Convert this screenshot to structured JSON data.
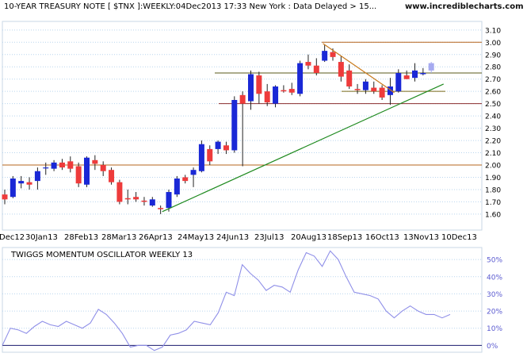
{
  "chart_data": [
    {
      "type": "candlestick",
      "title": "10-YEAR TREASURY NOTE [ $TNX ]:WEEKLY:04Dec2013 17:33 New York : Data Delayed > 15...",
      "watermark": "www.incrediblecharts.com",
      "y_ticks": [
        "3.10",
        "3.00",
        "2.90",
        "2.80",
        "2.70",
        "2.60",
        "2.50",
        "2.40",
        "2.30",
        "2.20",
        "2.10",
        "2.00",
        "1.90",
        "1.80",
        "1.70",
        "1.60"
      ],
      "x_labels": [
        "Dec12",
        "30Jan13",
        "28Feb13",
        "28Mar13",
        "26Apr13",
        "24May13",
        "24Jun13",
        "23Jul13",
        "20Aug13",
        "18Sep13",
        "16Oct13",
        "13Nov13",
        "10Dec13"
      ],
      "ylim": [
        1.47,
        3.17
      ],
      "colors": {
        "up": "#1a28d6",
        "down": "#ee3b3b",
        "current": "#a6aaf0",
        "support_line": "#1f8a1f",
        "resistance_line": "#c97a1c",
        "hline": "#8b2d2d",
        "grid": "#b9d5ee"
      },
      "candles": [
        {
          "o": 1.76,
          "h": 1.8,
          "l": 1.68,
          "c": 1.72
        },
        {
          "o": 1.74,
          "h": 1.91,
          "l": 1.73,
          "c": 1.89
        },
        {
          "o": 1.85,
          "h": 1.91,
          "l": 1.81,
          "c": 1.87
        },
        {
          "o": 1.86,
          "h": 1.9,
          "l": 1.8,
          "c": 1.84
        },
        {
          "o": 1.87,
          "h": 1.98,
          "l": 1.8,
          "c": 1.95
        },
        {
          "o": 1.98,
          "h": 2.02,
          "l": 1.92,
          "c": 1.98
        },
        {
          "o": 1.97,
          "h": 2.04,
          "l": 1.95,
          "c": 2.02
        },
        {
          "o": 2.02,
          "h": 2.05,
          "l": 1.96,
          "c": 1.98
        },
        {
          "o": 2.03,
          "h": 2.07,
          "l": 1.94,
          "c": 1.97
        },
        {
          "o": 1.99,
          "h": 2.02,
          "l": 1.82,
          "c": 1.85
        },
        {
          "o": 1.84,
          "h": 2.07,
          "l": 1.82,
          "c": 2.06
        },
        {
          "o": 2.04,
          "h": 2.08,
          "l": 1.96,
          "c": 2.01
        },
        {
          "o": 2.0,
          "h": 2.03,
          "l": 1.91,
          "c": 1.95
        },
        {
          "o": 1.96,
          "h": 1.98,
          "l": 1.84,
          "c": 1.86
        },
        {
          "o": 1.86,
          "h": 1.88,
          "l": 1.68,
          "c": 1.7
        },
        {
          "o": 1.73,
          "h": 1.8,
          "l": 1.68,
          "c": 1.72
        },
        {
          "o": 1.74,
          "h": 1.78,
          "l": 1.7,
          "c": 1.72
        },
        {
          "o": 1.71,
          "h": 1.74,
          "l": 1.67,
          "c": 1.7
        },
        {
          "o": 1.67,
          "h": 1.74,
          "l": 1.66,
          "c": 1.72
        },
        {
          "o": 1.65,
          "h": 1.67,
          "l": 1.6,
          "c": 1.64
        },
        {
          "o": 1.65,
          "h": 1.8,
          "l": 1.62,
          "c": 1.78
        },
        {
          "o": 1.76,
          "h": 1.91,
          "l": 1.74,
          "c": 1.89
        },
        {
          "o": 1.9,
          "h": 1.92,
          "l": 1.85,
          "c": 1.87
        },
        {
          "o": 1.92,
          "h": 1.98,
          "l": 1.82,
          "c": 1.96
        },
        {
          "o": 1.95,
          "h": 2.2,
          "l": 1.94,
          "c": 2.17
        },
        {
          "o": 2.13,
          "h": 2.16,
          "l": 2.0,
          "c": 2.03
        },
        {
          "o": 2.13,
          "h": 2.2,
          "l": 2.09,
          "c": 2.19
        },
        {
          "o": 2.16,
          "h": 2.19,
          "l": 2.09,
          "c": 2.12
        },
        {
          "o": 2.12,
          "h": 2.56,
          "l": 2.1,
          "c": 2.53
        },
        {
          "o": 2.57,
          "h": 2.6,
          "l": 1.99,
          "c": 2.5
        },
        {
          "o": 2.52,
          "h": 2.77,
          "l": 2.45,
          "c": 2.74
        },
        {
          "o": 2.73,
          "h": 2.76,
          "l": 2.5,
          "c": 2.58
        },
        {
          "o": 2.6,
          "h": 2.66,
          "l": 2.48,
          "c": 2.51
        },
        {
          "o": 2.5,
          "h": 2.65,
          "l": 2.47,
          "c": 2.64
        },
        {
          "o": 2.61,
          "h": 2.65,
          "l": 2.59,
          "c": 2.6
        },
        {
          "o": 2.62,
          "h": 2.67,
          "l": 2.57,
          "c": 2.59
        },
        {
          "o": 2.58,
          "h": 2.85,
          "l": 2.56,
          "c": 2.83
        },
        {
          "o": 2.84,
          "h": 2.9,
          "l": 2.78,
          "c": 2.81
        },
        {
          "o": 2.81,
          "h": 2.87,
          "l": 2.73,
          "c": 2.75
        },
        {
          "o": 2.85,
          "h": 2.98,
          "l": 2.84,
          "c": 2.93
        },
        {
          "o": 2.92,
          "h": 2.95,
          "l": 2.85,
          "c": 2.88
        },
        {
          "o": 2.84,
          "h": 2.89,
          "l": 2.68,
          "c": 2.72
        },
        {
          "o": 2.77,
          "h": 2.82,
          "l": 2.62,
          "c": 2.64
        },
        {
          "o": 2.62,
          "h": 2.66,
          "l": 2.58,
          "c": 2.61
        },
        {
          "o": 2.61,
          "h": 2.7,
          "l": 2.58,
          "c": 2.68
        },
        {
          "o": 2.63,
          "h": 2.68,
          "l": 2.58,
          "c": 2.6
        },
        {
          "o": 2.63,
          "h": 2.65,
          "l": 2.53,
          "c": 2.55
        },
        {
          "o": 2.57,
          "h": 2.71,
          "l": 2.49,
          "c": 2.64
        },
        {
          "o": 2.6,
          "h": 2.78,
          "l": 2.59,
          "c": 2.75
        },
        {
          "o": 2.73,
          "h": 2.77,
          "l": 2.7,
          "c": 2.7
        },
        {
          "o": 2.71,
          "h": 2.83,
          "l": 2.68,
          "c": 2.77
        },
        {
          "o": 2.74,
          "h": 2.79,
          "l": 2.73,
          "c": 2.75
        },
        {
          "o": 2.77,
          "h": 2.84,
          "l": 2.75,
          "c": 2.83,
          "current": true
        }
      ],
      "horizontal_lines": [
        2.0,
        2.5,
        2.6,
        2.75,
        3.0
      ],
      "trendlines": [
        {
          "name": "support",
          "from": {
            "i": 19.2,
            "v": 1.62
          },
          "to": {
            "i": 53.5,
            "v": 2.66
          }
        },
        {
          "name": "resistance",
          "from": {
            "i": 38.8,
            "v": 2.99
          },
          "to": {
            "i": 47.5,
            "v": 2.59
          }
        }
      ]
    },
    {
      "type": "line",
      "title": "TWIGGS MOMENTUM OSCILLATOR WEEKLY 13",
      "y_ticks": [
        "50%",
        "40%",
        "30%",
        "20%",
        "10%",
        "0%"
      ],
      "ylim": [
        -4,
        57
      ],
      "colors": {
        "line": "#8f8fe8",
        "zero": "#1a1a6e"
      },
      "values": [
        0,
        10,
        9,
        7,
        11,
        14,
        12,
        11,
        14,
        12,
        10,
        13,
        21,
        18,
        13,
        7,
        -1,
        0,
        0,
        -3,
        -1,
        6,
        7,
        9,
        14,
        13,
        12,
        19,
        31,
        29,
        47,
        42,
        38,
        32,
        35,
        34,
        31,
        44,
        54,
        52,
        46,
        55,
        50,
        40,
        31,
        30,
        29,
        27,
        20,
        16,
        20,
        23,
        20,
        18,
        18,
        16,
        18
      ]
    }
  ]
}
